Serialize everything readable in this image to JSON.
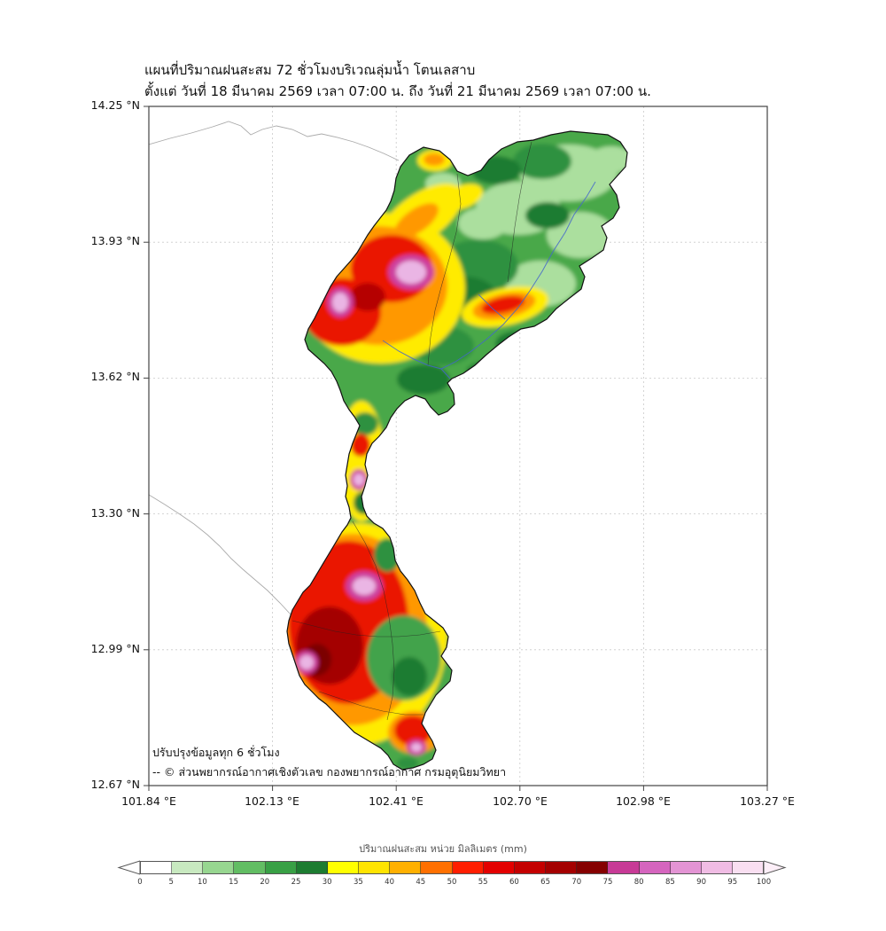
{
  "title": {
    "line1": "แผนที่ปริมาณฝนสะสม 72 ชั่วโมงบริเวณลุ่มน้ำ โตนเลสาบ",
    "line2": "ตั้งแต่ วันที่ 18 มีนาคม 2569 เวลา 07:00 น. ถึง วันที่ 21 มีนาคม 2569 เวลา 07:00 น."
  },
  "axes": {
    "y_ticks": [
      "14.25 °N",
      "13.93 °N",
      "13.62 °N",
      "13.30 °N",
      "12.99 °N",
      "12.67 °N"
    ],
    "x_ticks": [
      "101.84 °E",
      "102.13 °E",
      "102.41 °E",
      "102.70 °E",
      "102.98 °E",
      "103.27 °E"
    ]
  },
  "annotations": {
    "update_note": "ปรับปรุงข้อมูลทุก 6 ชั่วโมง",
    "credit": "-- © ส่วนพยากรณ์อากาศเชิงตัวเลข กองพยากรณ์อากาศ กรมอุตุนิยมวิทยา"
  },
  "colorbar": {
    "label": "ปริมาณฝนสะสม หน่วย มิลลิเมตร (mm)",
    "ticks": [
      "0",
      "5",
      "10",
      "15",
      "20",
      "25",
      "30",
      "35",
      "40",
      "45",
      "50",
      "55",
      "60",
      "65",
      "70",
      "75",
      "80",
      "85",
      "90",
      "95",
      "100"
    ],
    "colors": [
      "#ffffff",
      "#c8e9c0",
      "#97d690",
      "#62bd63",
      "#38a045",
      "#1d7c31",
      "#ffff00",
      "#ffe400",
      "#ffb000",
      "#ff7000",
      "#ff1e00",
      "#e30000",
      "#c40000",
      "#a40000",
      "#850000",
      "#c73a96",
      "#d565be",
      "#e394d4",
      "#f0bce4",
      "#f9dff1"
    ],
    "under_color": "#ffffff",
    "over_color": "#fdeff8"
  },
  "map_colors": {
    "base_green": "#4aa84a",
    "light_green": "#abdf9e",
    "dark_green": "#1e7c30",
    "yellow": "#ffeb00",
    "orange": "#ff9800",
    "red": "#ea1700",
    "dark_red": "#a40000",
    "magenta_ring": "#ce3f9f",
    "pink_center": "#eab5e4",
    "river_blue": "#4466cc"
  }
}
